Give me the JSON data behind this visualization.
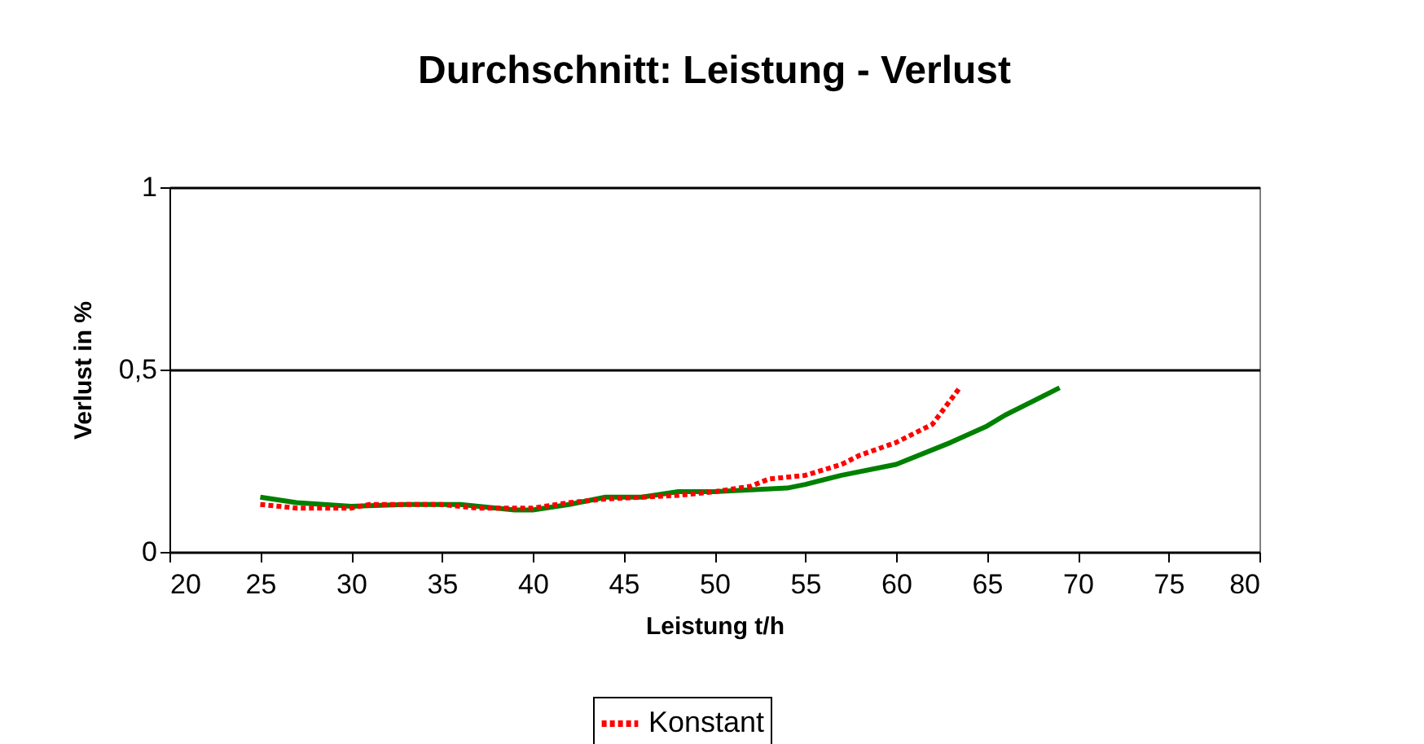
{
  "chart_data": {
    "type": "line",
    "title": "Durchschnitt: Leistung - Verlust",
    "xlabel": "Leistung t/h",
    "ylabel": "Verlust in %",
    "xlim": [
      20,
      80
    ],
    "xticks": [
      20,
      25,
      30,
      35,
      40,
      45,
      50,
      55,
      60,
      65,
      70,
      75,
      80
    ],
    "ylim": [
      0,
      1
    ],
    "yticks": [
      0,
      {
        "value": 0.5,
        "label": "0,5"
      },
      1
    ],
    "grid": "y",
    "legend": "bottom",
    "series": [
      {
        "color": "#008000",
        "line_style": "solid",
        "x": [
          25,
          27,
          30,
          33,
          36,
          39,
          40,
          42,
          44,
          46,
          48,
          50,
          52,
          54,
          55,
          57,
          60,
          63,
          65,
          66,
          69
        ],
        "values": [
          0.15,
          0.135,
          0.125,
          0.13,
          0.13,
          0.115,
          0.115,
          0.13,
          0.15,
          0.15,
          0.165,
          0.165,
          0.17,
          0.175,
          0.185,
          0.21,
          0.24,
          0.3,
          0.345,
          0.375,
          0.45
        ]
      },
      {
        "name": "Konstant",
        "color": "#ff0000",
        "line_style": "dotted",
        "x": [
          25,
          27,
          30,
          31,
          35,
          37,
          40,
          42,
          44,
          46,
          48,
          50,
          52,
          53,
          55,
          57,
          58,
          60,
          62,
          63.5
        ],
        "values": [
          0.13,
          0.12,
          0.12,
          0.13,
          0.13,
          0.12,
          0.12,
          0.135,
          0.145,
          0.15,
          0.155,
          0.165,
          0.18,
          0.2,
          0.21,
          0.24,
          0.265,
          0.3,
          0.35,
          0.45
        ]
      }
    ]
  }
}
